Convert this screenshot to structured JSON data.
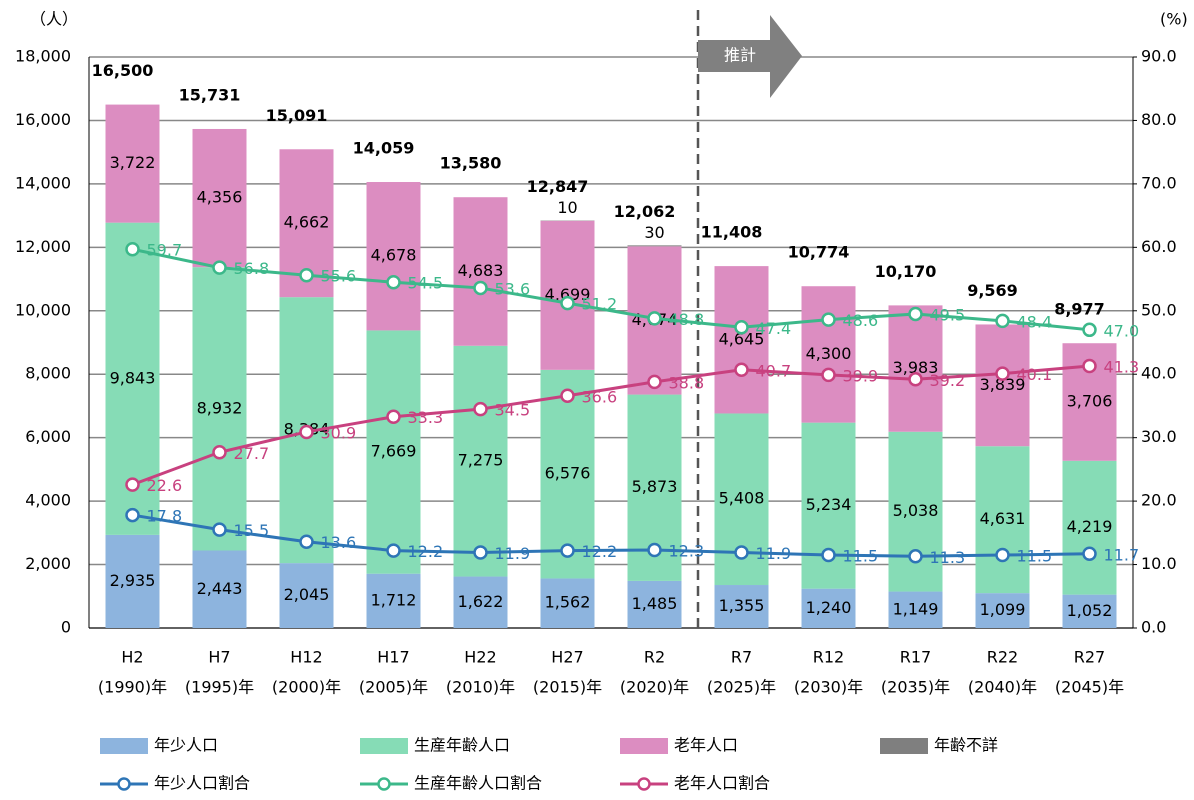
{
  "chart_data": {
    "type": "bar_line",
    "y_unit": "（人）",
    "y2_unit": "(%)",
    "annotation": "推計",
    "categories": [
      [
        "H2",
        "(1990)年"
      ],
      [
        "H7",
        "(1995)年"
      ],
      [
        "H12",
        "(2000)年"
      ],
      [
        "H17",
        "(2005)年"
      ],
      [
        "H22",
        "(2010)年"
      ],
      [
        "H27",
        "(2015)年"
      ],
      [
        "R2",
        "(2020)年"
      ],
      [
        "R7",
        "(2025)年"
      ],
      [
        "R12",
        "(2030)年"
      ],
      [
        "R17",
        "(2035)年"
      ],
      [
        "R22",
        "(2040)年"
      ],
      [
        "R27",
        "(2045)年"
      ]
    ],
    "series": [
      {
        "name": "年少人口",
        "color": "#8db4de",
        "values": [
          2935,
          2443,
          2045,
          1712,
          1622,
          1562,
          1485,
          1355,
          1240,
          1149,
          1099,
          1052
        ],
        "value_labels": [
          "2,935",
          "2,443",
          "2,045",
          "1,712",
          "1,622",
          "1,562",
          "1,485",
          "1,355",
          "1,240",
          "1,149",
          "1,099",
          "1,052"
        ]
      },
      {
        "name": "生産年齢人口",
        "color": "#86dcb6",
        "values": [
          9843,
          8932,
          8384,
          7669,
          7275,
          6576,
          5873,
          5408,
          5234,
          5038,
          4631,
          4219
        ],
        "value_labels": [
          "9,843",
          "8,932",
          "8,384",
          "7,669",
          "7,275",
          "6,576",
          "5,873",
          "5,408",
          "5,234",
          "5,038",
          "4,631",
          "4,219"
        ]
      },
      {
        "name": "老年人口",
        "color": "#dc8dc1",
        "values": [
          3722,
          4356,
          4662,
          4678,
          4683,
          4699,
          4674,
          4645,
          4300,
          3983,
          3839,
          3706
        ],
        "value_labels": [
          "3,722",
          "4,356",
          "4,662",
          "4,678",
          "4,683",
          "4,699",
          "4,674",
          "4,645",
          "4,300",
          "3,983",
          "3,839",
          "3,706"
        ]
      },
      {
        "name": "年齢不詳",
        "color": "#7f7f7f",
        "values": [
          null,
          null,
          null,
          null,
          null,
          10,
          30,
          null,
          null,
          null,
          null,
          null
        ]
      },
      {
        "name": "年少人口割合",
        "color": "#2e75b6",
        "axis": "y2",
        "values": [
          17.8,
          15.5,
          13.6,
          12.2,
          11.9,
          12.2,
          12.3,
          11.9,
          11.5,
          11.3,
          11.5,
          11.7
        ]
      },
      {
        "name": "生産年齢人口割合",
        "color": "#3cb88a",
        "axis": "y2",
        "values": [
          59.7,
          56.8,
          55.6,
          54.5,
          53.6,
          51.2,
          48.8,
          47.4,
          48.6,
          49.5,
          48.4,
          47.0
        ],
        "value_labels": [
          "59.7",
          "56.8",
          "55.6",
          "54.5",
          "53.6",
          "51.2",
          "48.8",
          "47.4",
          "48.6",
          "49.5",
          "48.4",
          "47.0"
        ]
      },
      {
        "name": "老年人口割合",
        "color": "#c8417f",
        "axis": "y2",
        "values": [
          22.6,
          27.7,
          30.9,
          33.3,
          34.5,
          36.6,
          38.8,
          40.7,
          39.9,
          39.2,
          40.1,
          41.3
        ]
      }
    ],
    "total_values": [
      16500,
      15731,
      15091,
      14059,
      13580,
      12847,
      12062,
      11408,
      10774,
      10170,
      9569,
      8977
    ],
    "total_labels": [
      "16,500",
      "15,731",
      "15,091",
      "14,059",
      "13,580",
      "12,847",
      "12,062",
      "11,408",
      "10,774",
      "10,170",
      "9,569",
      "8,977"
    ],
    "ylim": [
      0,
      18000
    ],
    "yticks": [
      0,
      {
        "value": 2000,
        "label": "2,000"
      },
      {
        "value": 4000,
        "label": "4,000"
      },
      {
        "value": 6000,
        "label": "6,000"
      },
      {
        "value": 8000,
        "label": "8,000"
      },
      {
        "value": 10000,
        "label": "10,000"
      },
      {
        "value": 12000,
        "label": "12,000"
      },
      {
        "value": 14000,
        "label": "14,000"
      },
      {
        "value": 16000,
        "label": "16,000"
      },
      {
        "value": 18000,
        "label": "18,000"
      }
    ],
    "y2lim": [
      0,
      90
    ],
    "y2ticks": [
      {
        "value": 0,
        "label": "0.0"
      },
      {
        "value": 10,
        "label": "10.0"
      },
      {
        "value": 20,
        "label": "20.0"
      },
      {
        "value": 30,
        "label": "30.0"
      },
      {
        "value": 40,
        "label": "40.0"
      },
      {
        "value": 50,
        "label": "50.0"
      },
      {
        "value": 60,
        "label": "60.0"
      },
      {
        "value": 70,
        "label": "70.0"
      },
      {
        "value": 80,
        "label": "80.0"
      },
      {
        "value": 90,
        "label": "90.0"
      }
    ],
    "grid": true
  }
}
